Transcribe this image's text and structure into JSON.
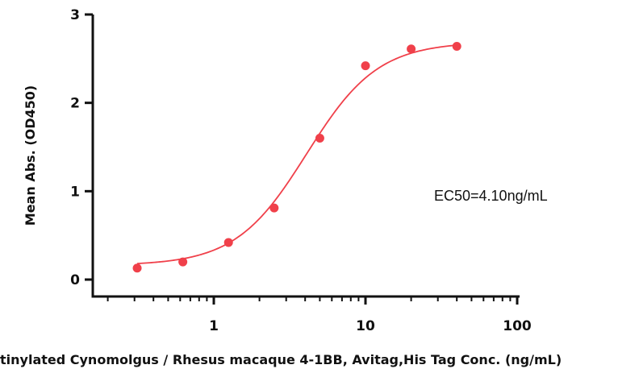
{
  "chart_data": {
    "type": "scatter",
    "x_scale": "log",
    "xlim": [
      0.2,
      100
    ],
    "ylim": [
      -0.1,
      3
    ],
    "x_ticks": [
      1,
      10,
      100
    ],
    "x_tick_labels": [
      "1",
      "10",
      "100"
    ],
    "y_ticks": [
      0,
      1,
      2,
      3
    ],
    "y_tick_labels": [
      "0",
      "1",
      "2",
      "3"
    ],
    "xlabel": "tinylated Cynomolgus / Rhesus macaque 4-1BB, Avitag,His Tag Conc. (ng/mL)",
    "ylabel": "Mean Abs. (OD450)",
    "annotation": "EC50=4.10ng/mL",
    "grid": false,
    "series": [
      {
        "x": [
          0.3125,
          0.625,
          1.25,
          2.5,
          5,
          10,
          20,
          40
        ],
        "y": [
          0.13,
          0.2,
          0.42,
          0.81,
          1.6,
          2.42,
          2.61,
          2.64
        ],
        "color": "#f0404a",
        "fit": {
          "model": "4PL",
          "bottom": 0.16,
          "top": 2.69,
          "ec50": 4.1,
          "hill": 1.85
        }
      }
    ]
  }
}
